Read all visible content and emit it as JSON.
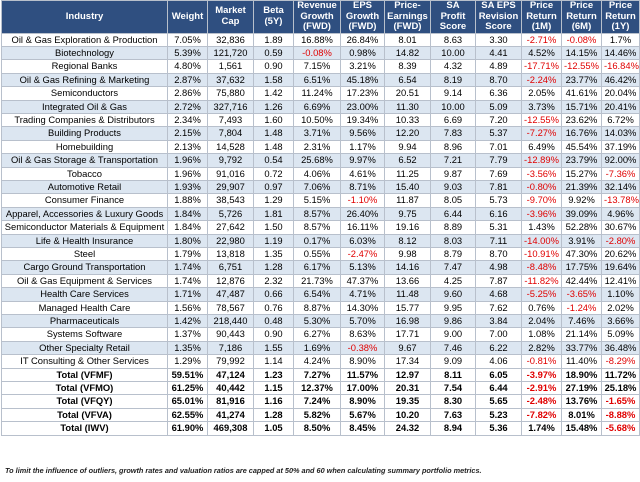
{
  "header": [
    "Industry",
    "Weight",
    "Market Cap",
    "Beta (5Y)",
    "Revenue Growth (FWD)",
    "EPS Growth (FWD)",
    "Price-Earnings (FWD)",
    "SA Profit Score",
    "SA EPS Revision Score",
    "Price Return (1M)",
    "Price Return (6M)",
    "Price Return (1Y)"
  ],
  "rows": [
    [
      "Oil & Gas Exploration & Production",
      "7.05%",
      "32,836",
      "1.89",
      "16.88%",
      "26.84%",
      "8.01",
      "8.63",
      "3.30",
      "-2.71%",
      "-0.08%",
      "1.7%"
    ],
    [
      "Biotechnology",
      "5.39%",
      "121,720",
      "0.59",
      "-0.08%",
      "0.98%",
      "14.82",
      "10.00",
      "4.41",
      "4.52%",
      "14.15%",
      "14.46%"
    ],
    [
      "Regional Banks",
      "4.80%",
      "1,561",
      "0.90",
      "7.15%",
      "3.21%",
      "8.39",
      "4.32",
      "4.89",
      "-17.71%",
      "-12.55%",
      "-16.84%"
    ],
    [
      "Oil & Gas Refining & Marketing",
      "2.87%",
      "37,632",
      "1.58",
      "6.51%",
      "45.18%",
      "6.54",
      "8.19",
      "8.70",
      "-2.24%",
      "23.77%",
      "46.42%"
    ],
    [
      "Semiconductors",
      "2.86%",
      "75,880",
      "1.42",
      "11.24%",
      "17.23%",
      "20.51",
      "9.14",
      "6.36",
      "2.05%",
      "41.61%",
      "20.04%"
    ],
    [
      "Integrated Oil & Gas",
      "2.72%",
      "327,716",
      "1.26",
      "6.69%",
      "23.00%",
      "11.30",
      "10.00",
      "5.09",
      "3.73%",
      "15.71%",
      "20.41%"
    ],
    [
      "Trading Companies & Distributors",
      "2.34%",
      "7,493",
      "1.60",
      "10.50%",
      "19.34%",
      "10.33",
      "6.69",
      "7.20",
      "-12.55%",
      "23.62%",
      "6.72%"
    ],
    [
      "Building Products",
      "2.15%",
      "7,804",
      "1.48",
      "3.71%",
      "9.56%",
      "12.20",
      "7.83",
      "5.37",
      "-7.27%",
      "16.76%",
      "14.03%"
    ],
    [
      "Homebuilding",
      "2.13%",
      "14,528",
      "1.48",
      "2.31%",
      "1.17%",
      "9.94",
      "8.96",
      "7.01",
      "6.49%",
      "45.54%",
      "37.19%"
    ],
    [
      "Oil & Gas Storage & Transportation",
      "1.96%",
      "9,792",
      "0.54",
      "25.68%",
      "9.97%",
      "6.52",
      "7.21",
      "7.79",
      "-12.89%",
      "23.79%",
      "92.00%"
    ],
    [
      "Tobacco",
      "1.96%",
      "91,016",
      "0.72",
      "4.06%",
      "4.61%",
      "11.25",
      "9.87",
      "7.69",
      "-3.56%",
      "15.27%",
      "-7.36%"
    ],
    [
      "Automotive Retail",
      "1.93%",
      "29,907",
      "0.97",
      "7.06%",
      "8.71%",
      "15.40",
      "9.03",
      "7.81",
      "-0.80%",
      "21.39%",
      "32.14%"
    ],
    [
      "Consumer Finance",
      "1.88%",
      "38,543",
      "1.29",
      "5.15%",
      "-1.10%",
      "11.87",
      "8.05",
      "5.73",
      "-9.70%",
      "9.92%",
      "-13.78%"
    ],
    [
      "Apparel, Accessories & Luxury Goods",
      "1.84%",
      "5,726",
      "1.81",
      "8.57%",
      "26.40%",
      "9.75",
      "6.44",
      "6.16",
      "-3.96%",
      "39.09%",
      "4.96%"
    ],
    [
      "Semiconductor Materials & Equipment",
      "1.84%",
      "27,642",
      "1.50",
      "8.57%",
      "16.11%",
      "19.16",
      "8.89",
      "5.31",
      "1.43%",
      "52.28%",
      "30.67%"
    ],
    [
      "Life & Health Insurance",
      "1.80%",
      "22,980",
      "1.19",
      "0.17%",
      "6.03%",
      "8.12",
      "8.03",
      "7.11",
      "-14.00%",
      "3.91%",
      "-2.80%"
    ],
    [
      "Steel",
      "1.79%",
      "13,818",
      "1.35",
      "0.55%",
      "-2.47%",
      "9.98",
      "8.79",
      "8.70",
      "-10.91%",
      "47.30%",
      "20.62%"
    ],
    [
      "Cargo Ground Transportation",
      "1.74%",
      "6,751",
      "1.28",
      "6.17%",
      "5.13%",
      "14.16",
      "7.47",
      "4.98",
      "-8.48%",
      "17.75%",
      "19.64%"
    ],
    [
      "Oil & Gas Equipment & Services",
      "1.74%",
      "12,876",
      "2.32",
      "21.73%",
      "47.37%",
      "13.66",
      "4.25",
      "7.87",
      "-11.82%",
      "42.44%",
      "12.41%"
    ],
    [
      "Health Care Services",
      "1.71%",
      "47,487",
      "0.66",
      "6.54%",
      "4.71%",
      "11.48",
      "9.60",
      "4.68",
      "-5.25%",
      "-3.65%",
      "1.10%"
    ],
    [
      "Managed Health Care",
      "1.56%",
      "78,567",
      "0.76",
      "8.87%",
      "14.30%",
      "15.77",
      "9.95",
      "7.62",
      "0.76%",
      "-1.24%",
      "2.02%"
    ],
    [
      "Pharmaceuticals",
      "1.42%",
      "218,440",
      "0.48",
      "5.30%",
      "5.70%",
      "16.98",
      "9.86",
      "3.84",
      "2.04%",
      "7.46%",
      "3.66%"
    ],
    [
      "Systems Software",
      "1.37%",
      "90,443",
      "0.90",
      "6.27%",
      "8.63%",
      "17.71",
      "9.00",
      "7.00",
      "1.08%",
      "21.14%",
      "5.09%"
    ],
    [
      "Other Specialty Retail",
      "1.35%",
      "7,186",
      "1.55",
      "1.69%",
      "-0.38%",
      "9.67",
      "7.46",
      "6.22",
      "2.82%",
      "33.77%",
      "36.48%"
    ],
    [
      "IT Consulting & Other Services",
      "1.29%",
      "79,992",
      "1.14",
      "4.24%",
      "8.90%",
      "17.34",
      "9.09",
      "4.06",
      "-0.81%",
      "11.40%",
      "-8.29%"
    ]
  ],
  "totals": [
    [
      "Total (VFMF)",
      "59.51%",
      "47,124",
      "1.23",
      "7.27%",
      "11.57%",
      "12.97",
      "8.11",
      "6.05",
      "-3.97%",
      "18.90%",
      "11.72%"
    ],
    [
      "Total (VFMO)",
      "61.25%",
      "40,442",
      "1.15",
      "12.37%",
      "17.00%",
      "20.31",
      "7.54",
      "6.44",
      "-2.91%",
      "27.19%",
      "25.18%"
    ],
    [
      "Total (VFQY)",
      "65.01%",
      "81,916",
      "1.16",
      "7.24%",
      "8.90%",
      "19.35",
      "8.30",
      "5.65",
      "-2.48%",
      "13.76%",
      "-1.65%"
    ],
    [
      "Total (VFVA)",
      "62.55%",
      "41,274",
      "1.28",
      "5.82%",
      "5.67%",
      "10.20",
      "7.63",
      "5.23",
      "-7.82%",
      "8.01%",
      "-8.88%"
    ],
    [
      "Total (IWV)",
      "61.90%",
      "469,308",
      "1.05",
      "8.50%",
      "8.45%",
      "24.32",
      "8.94",
      "5.36",
      "1.74%",
      "15.48%",
      "-5.68%"
    ]
  ],
  "note": "To limit the influence of outliers, growth rates and valuation ratios are capped at 50% and 60 when calculating summary portfolio metrics.",
  "colors": {
    "header_bg": "#2f4f80",
    "header_text": "#ffffff",
    "alt_row_bg": "#dce6f1",
    "negative_text": "#e00000"
  }
}
